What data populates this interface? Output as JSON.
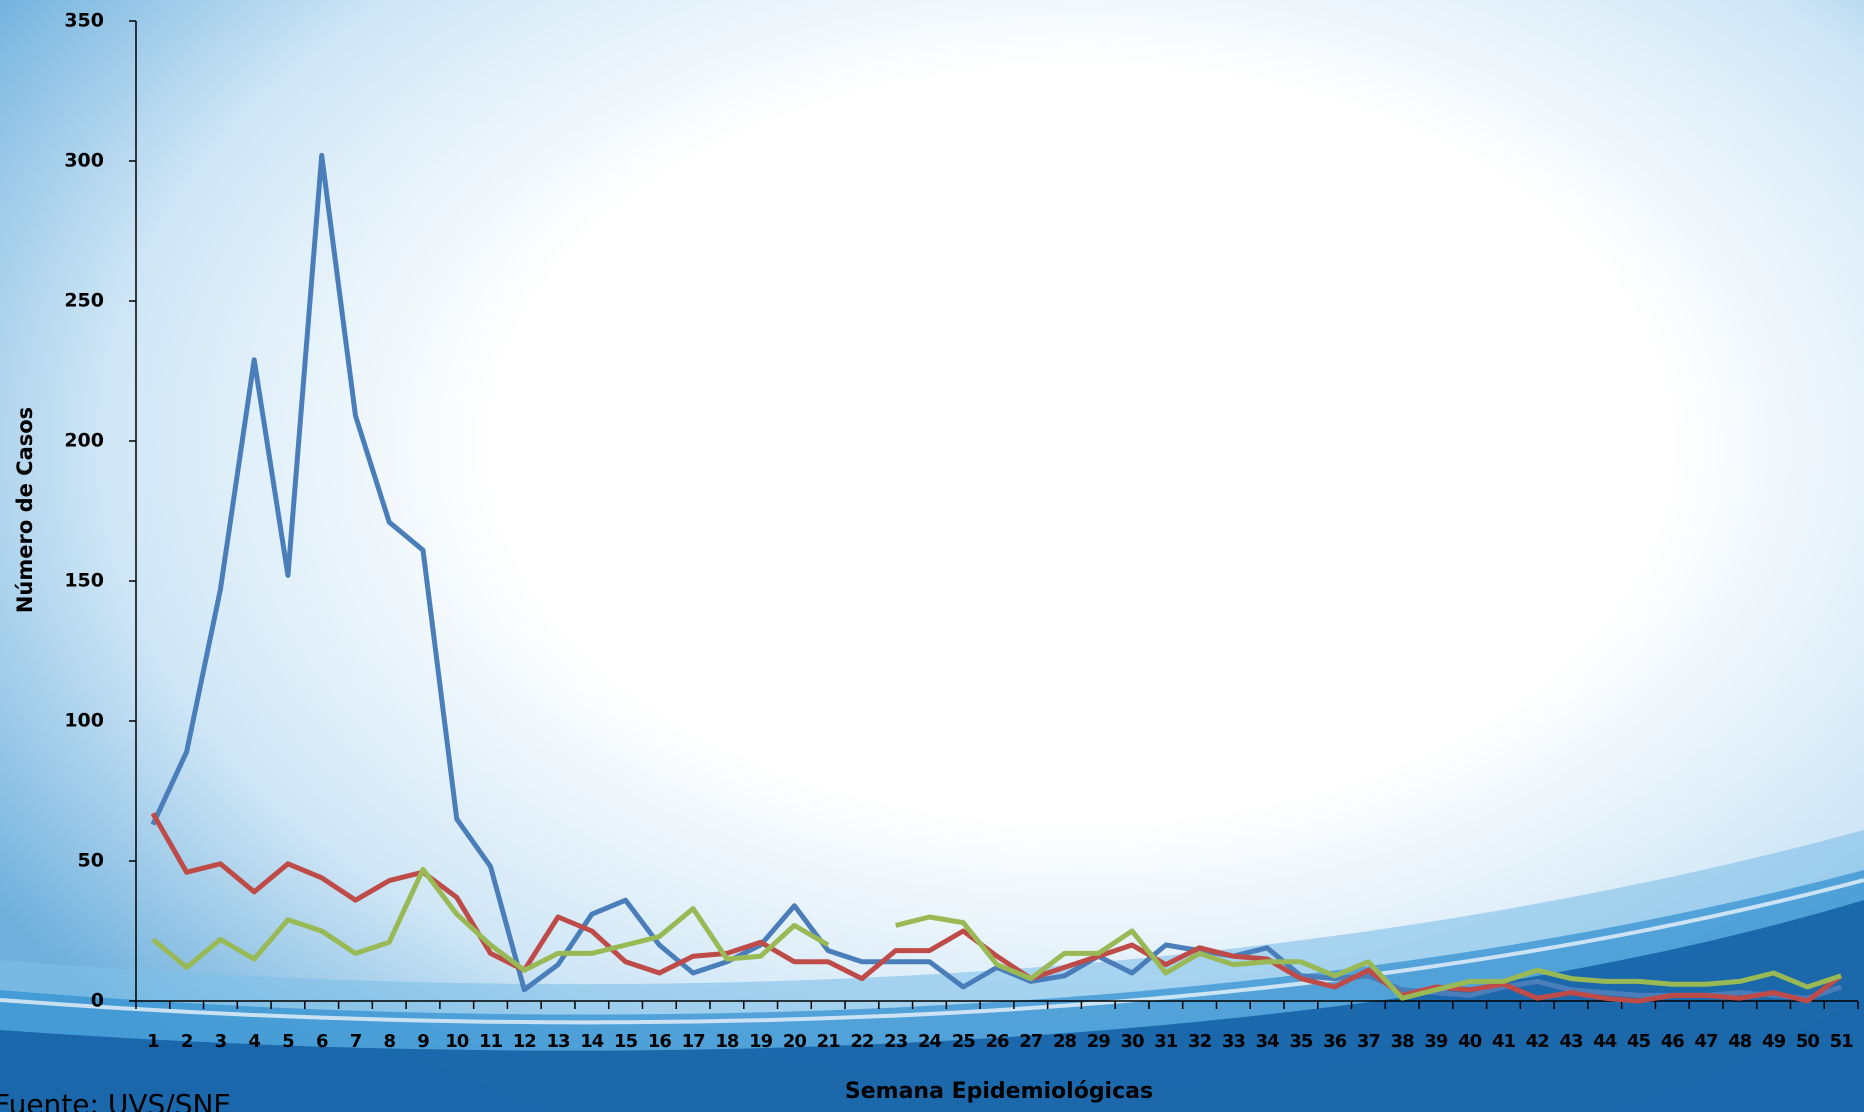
{
  "chart_data": {
    "type": "line",
    "x_label": "Semana Epidemiológicas",
    "y_label": "Número de Casos",
    "source": "Fuente: UVS/SNE",
    "categories": [
      "1",
      "2",
      "3",
      "4",
      "5",
      "6",
      "7",
      "8",
      "9",
      "10",
      "11",
      "12",
      "13",
      "14",
      "15",
      "16",
      "17",
      "18",
      "19",
      "20",
      "21",
      "22",
      "23",
      "24",
      "25",
      "26",
      "27",
      "28",
      "29",
      "30",
      "31",
      "32",
      "33",
      "34",
      "35",
      "36",
      "37",
      "38",
      "39",
      "40",
      "41",
      "42",
      "43",
      "44",
      "45",
      "46",
      "47",
      "48",
      "49",
      "50",
      "51"
    ],
    "series": [
      {
        "color": "#4a7ebb",
        "values": [
          63,
          89,
          147,
          229,
          152,
          302,
          209,
          171,
          161,
          65,
          48,
          4,
          13,
          31,
          36,
          20,
          10,
          14,
          20,
          34,
          18,
          14,
          14,
          14,
          5,
          12,
          7,
          9,
          16,
          10,
          20,
          18,
          16,
          19,
          9,
          8,
          9,
          4,
          3,
          2,
          5,
          7,
          4,
          3,
          2,
          2,
          2,
          3,
          2,
          1,
          5
        ]
      },
      {
        "color": "#be4b48",
        "values": [
          67,
          46,
          49,
          39,
          49,
          44,
          36,
          43,
          46,
          37,
          17,
          11,
          30,
          25,
          14,
          10,
          16,
          17,
          21,
          14,
          14,
          8,
          18,
          18,
          25,
          16,
          8,
          12,
          16,
          20,
          13,
          19,
          16,
          15,
          8,
          5,
          11,
          2,
          5,
          4,
          6,
          1,
          3,
          1,
          0,
          2,
          2,
          1,
          3,
          0,
          9
        ]
      },
      {
        "color": "#98b954",
        "values": [
          22,
          12,
          22,
          15,
          29,
          25,
          17,
          21,
          47,
          31,
          20,
          11,
          17,
          17,
          20,
          23,
          33,
          15,
          16,
          27,
          20,
          null,
          27,
          30,
          28,
          13,
          8,
          17,
          17,
          25,
          10,
          17,
          13,
          14,
          14,
          9,
          14,
          1,
          4,
          7,
          7,
          11,
          8,
          7,
          7,
          6,
          6,
          7,
          10,
          5,
          9
        ]
      }
    ],
    "ylim": [
      0,
      350
    ],
    "yticks": [
      0,
      50,
      100,
      150,
      200,
      250,
      300,
      350
    ]
  }
}
